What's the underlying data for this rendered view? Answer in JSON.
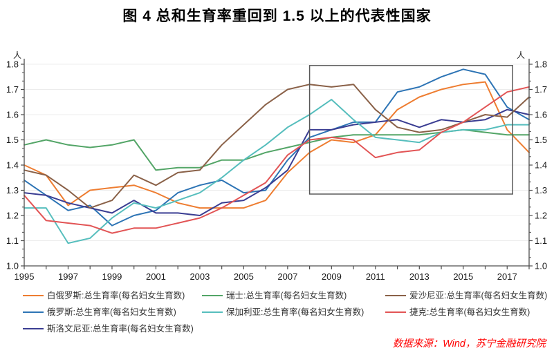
{
  "title": "图 4  总和生育率重回到 1.5 以上的代表性国家",
  "source_note": "数据来源：Wind，苏宁金融研究院",
  "unit_label": "人",
  "axis_color": "#4d4d4d",
  "grid_color": "#ececec",
  "tick_label_color": "#1a1a1a",
  "highlight_box_color": "#595959",
  "chart_data": {
    "type": "line",
    "x": [
      1995,
      1996,
      1997,
      1998,
      1999,
      2000,
      2001,
      2002,
      2003,
      2004,
      2005,
      2006,
      2007,
      2008,
      2009,
      2010,
      2011,
      2012,
      2013,
      2014,
      2015,
      2016,
      2017,
      2018
    ],
    "series": [
      {
        "id": "belarus",
        "name": "白俄罗斯",
        "color": "#EE7D31",
        "values": [
          1.4,
          1.36,
          1.24,
          1.3,
          1.31,
          1.32,
          1.29,
          1.25,
          1.23,
          1.23,
          1.23,
          1.26,
          1.37,
          1.45,
          1.5,
          1.49,
          1.52,
          1.62,
          1.67,
          1.7,
          1.72,
          1.73,
          1.54,
          1.45
        ]
      },
      {
        "id": "russia",
        "name": "俄罗斯",
        "color": "#2D74B5",
        "values": [
          1.34,
          1.28,
          1.22,
          1.24,
          1.16,
          1.2,
          1.22,
          1.29,
          1.32,
          1.34,
          1.29,
          1.3,
          1.42,
          1.51,
          1.54,
          1.57,
          1.57,
          1.69,
          1.71,
          1.75,
          1.78,
          1.76,
          1.63,
          1.58
        ]
      },
      {
        "id": "slovenia",
        "name": "斯洛文尼亚",
        "color": "#3A3D92",
        "values": [
          1.29,
          1.28,
          1.25,
          1.23,
          1.21,
          1.26,
          1.21,
          1.21,
          1.2,
          1.25,
          1.26,
          1.31,
          1.38,
          1.54,
          1.54,
          1.56,
          1.57,
          1.58,
          1.55,
          1.58,
          1.57,
          1.58,
          1.62,
          1.6
        ]
      },
      {
        "id": "switzerland",
        "name": "瑞士",
        "color": "#53A567",
        "values": [
          1.48,
          1.5,
          1.48,
          1.47,
          1.48,
          1.5,
          1.38,
          1.39,
          1.39,
          1.42,
          1.42,
          1.45,
          1.47,
          1.49,
          1.51,
          1.52,
          1.52,
          1.52,
          1.52,
          1.53,
          1.54,
          1.53,
          1.52,
          1.52
        ]
      },
      {
        "id": "bulgaria",
        "name": "保加利亚",
        "color": "#56BEBD",
        "values": [
          1.23,
          1.23,
          1.09,
          1.11,
          1.19,
          1.25,
          1.23,
          1.26,
          1.29,
          1.35,
          1.42,
          1.48,
          1.55,
          1.6,
          1.66,
          1.58,
          1.51,
          1.5,
          1.49,
          1.53,
          1.54,
          1.54,
          1.56,
          1.56
        ]
      },
      {
        "id": "estonia",
        "name": "爱沙尼亚",
        "color": "#8A6148",
        "values": [
          1.38,
          1.36,
          1.3,
          1.23,
          1.26,
          1.36,
          1.32,
          1.37,
          1.38,
          1.48,
          1.56,
          1.64,
          1.7,
          1.72,
          1.71,
          1.72,
          1.62,
          1.55,
          1.53,
          1.54,
          1.57,
          1.6,
          1.59,
          1.67
        ]
      },
      {
        "id": "czech",
        "name": "捷克",
        "color": "#E25455",
        "values": [
          1.28,
          1.18,
          1.17,
          1.16,
          1.13,
          1.15,
          1.15,
          1.17,
          1.19,
          1.23,
          1.28,
          1.33,
          1.44,
          1.5,
          1.51,
          1.5,
          1.43,
          1.45,
          1.46,
          1.53,
          1.57,
          1.63,
          1.69,
          1.71
        ]
      }
    ],
    "title": "图 4  总和生育率重回到 1.5 以上的代表性国家",
    "xlabel": "",
    "ylabel": "人",
    "ylim": [
      1.0,
      1.8
    ],
    "ytick_step": 0.1,
    "ytick_labels": [
      "1.0",
      "1.1",
      "1.2",
      "1.3",
      "1.4",
      "1.5",
      "1.6",
      "1.7",
      "1.8"
    ],
    "xtick_labels": [
      "1995",
      "1997",
      "1999",
      "2001",
      "2003",
      "2005",
      "2007",
      "2009",
      "2011",
      "2013",
      "2015",
      "2017"
    ],
    "grid": "horizontal",
    "legend_position": "bottom",
    "annotation_box": {
      "x_from": 2008,
      "x_to": 2017.25,
      "y_from": 1.285,
      "y_to": 1.795
    }
  },
  "legend": {
    "items": [
      {
        "series": "belarus",
        "label": "白俄罗斯:总生育率(每名妇女生育数)",
        "col": 0,
        "row": 0
      },
      {
        "series": "russia",
        "label": "俄罗斯:总生育率(每名妇女生育数)",
        "col": 0,
        "row": 1
      },
      {
        "series": "slovenia",
        "label": "斯洛文尼亚:总生育率(每名妇女生育数)",
        "col": 0,
        "row": 2
      },
      {
        "series": "switzerland",
        "label": "瑞士:总生育率(每名妇女生育数)",
        "col": 1,
        "row": 0
      },
      {
        "series": "bulgaria",
        "label": "保加利亚:总生育率(每名妇女生育数)",
        "col": 1,
        "row": 1
      },
      {
        "series": "estonia",
        "label": "爱沙尼亚:总生育率(每名妇女生育数)",
        "col": 2,
        "row": 0
      },
      {
        "series": "czech",
        "label": "捷克:总生育率(每名妇女生育数)",
        "col": 2,
        "row": 1
      }
    ]
  }
}
